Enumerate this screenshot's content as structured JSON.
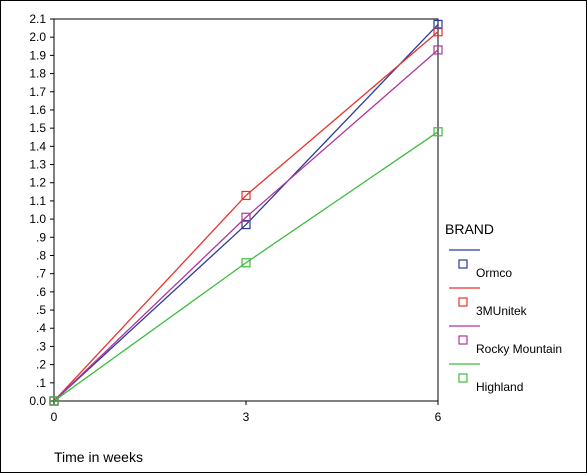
{
  "chart_data": {
    "type": "line",
    "xlabel": "Time in weeks",
    "ylabel": "",
    "x": [
      0,
      3,
      6
    ],
    "x_ticks": [
      "0",
      "3",
      "6"
    ],
    "ylim": [
      0,
      2.1
    ],
    "y_ticks": [
      "0.0",
      ".1",
      ".2",
      ".3",
      ".4",
      ".5",
      ".6",
      ".7",
      ".8",
      ".9",
      "1.0",
      "1.1",
      "1.2",
      "1.3",
      "1.4",
      "1.5",
      "1.6",
      "1.7",
      "1.8",
      "1.9",
      "2.0",
      "2.1"
    ],
    "legend_title": "BRAND",
    "legend_position": "right",
    "grid": false,
    "series": [
      {
        "name": "Ormco",
        "color": "#2b3a9a",
        "values": [
          0.0,
          0.97,
          2.07
        ]
      },
      {
        "name": "3MUnitek",
        "color": "#e8332a",
        "values": [
          0.0,
          1.13,
          2.03
        ]
      },
      {
        "name": "Rocky Mountain",
        "color": "#b0359e",
        "values": [
          0.0,
          1.01,
          1.93
        ]
      },
      {
        "name": "Highland",
        "color": "#3dbb3d",
        "values": [
          0.0,
          0.76,
          1.48
        ]
      }
    ]
  }
}
